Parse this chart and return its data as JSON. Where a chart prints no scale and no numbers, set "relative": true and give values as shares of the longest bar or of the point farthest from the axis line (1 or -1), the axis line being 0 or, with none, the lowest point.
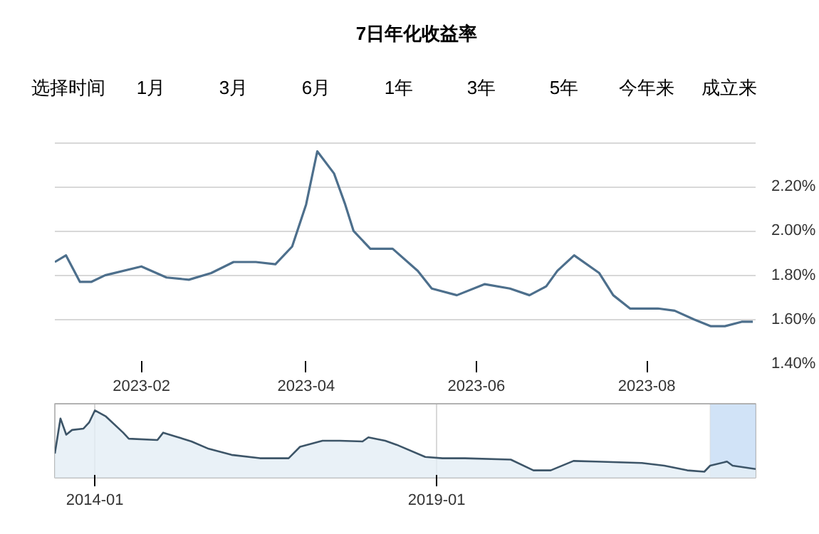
{
  "chart_data": [
    {
      "type": "line",
      "title": "7日年化收益率",
      "annotations": [
        "选择时间",
        "1月",
        "3月",
        "6月",
        "1年",
        "3年",
        "5年",
        "今年来",
        "成立来"
      ],
      "x": [
        "2023-01-01",
        "2023-01-05",
        "2023-01-10",
        "2023-01-14",
        "2023-01-19",
        "2023-02-01",
        "2023-02-10",
        "2023-02-18",
        "2023-02-26",
        "2023-03-06",
        "2023-03-14",
        "2023-03-21",
        "2023-03-27",
        "2023-04-01",
        "2023-04-05",
        "2023-04-11",
        "2023-04-15",
        "2023-04-18",
        "2023-04-24",
        "2023-05-02",
        "2023-05-11",
        "2023-05-16",
        "2023-05-25",
        "2023-06-04",
        "2023-06-13",
        "2023-06-20",
        "2023-06-26",
        "2023-06-30",
        "2023-07-06",
        "2023-07-15",
        "2023-07-20",
        "2023-07-26",
        "2023-08-05",
        "2023-08-11",
        "2023-08-18",
        "2023-08-24",
        "2023-08-29",
        "2023-09-04",
        "2023-09-08"
      ],
      "series": [
        {
          "color": "#4d6f8c",
          "values": [
            1.86,
            1.89,
            1.77,
            1.77,
            1.8,
            1.84,
            1.79,
            1.78,
            1.81,
            1.86,
            1.86,
            1.85,
            1.93,
            2.12,
            2.36,
            2.26,
            2.12,
            2.0,
            1.92,
            1.92,
            1.82,
            1.74,
            1.71,
            1.76,
            1.74,
            1.71,
            1.75,
            1.82,
            1.89,
            1.81,
            1.71,
            1.65,
            1.65,
            1.64,
            1.6,
            1.57,
            1.57,
            1.59,
            1.59
          ]
        }
      ],
      "xlim": [
        "2023-01-01",
        "2023-09-09"
      ],
      "xticks": [
        {
          "value": "2023-02-01",
          "label": "2023-02"
        },
        {
          "value": "2023-04-01",
          "label": "2023-04"
        },
        {
          "value": "2023-06-01",
          "label": "2023-06"
        },
        {
          "value": "2023-08-01",
          "label": "2023-08"
        }
      ],
      "ylim": [
        1.4,
        2.41
      ],
      "yticks": [
        {
          "value": 1.4,
          "label": "1.40%"
        },
        {
          "value": 1.6,
          "label": "1.60%"
        },
        {
          "value": 1.8,
          "label": "1.80%"
        },
        {
          "value": 2.0,
          "label": "2.00%"
        },
        {
          "value": 2.2,
          "label": "2.20%"
        },
        {
          "value": 2.4,
          "label": null
        }
      ],
      "grid": "y"
    },
    {
      "type": "area",
      "relative": true,
      "x": [
        "2013-06",
        "2013-07",
        "2013-08",
        "2013-09",
        "2013-11",
        "2013-12",
        "2014-01",
        "2014-03",
        "2014-06",
        "2014-07",
        "2014-12",
        "2015-01",
        "2015-03",
        "2015-06",
        "2015-09",
        "2016-01",
        "2016-06",
        "2016-11",
        "2017-01",
        "2017-05",
        "2017-08",
        "2017-12",
        "2018-01",
        "2018-04",
        "2018-06",
        "2018-11",
        "2019-02",
        "2019-06",
        "2020-02",
        "2020-06",
        "2020-09",
        "2021-01",
        "2021-05",
        "2022-01",
        "2022-05",
        "2022-09",
        "2022-12",
        "2023-01",
        "2023-04",
        "2023-05",
        "2023-09"
      ],
      "series": [
        {
          "color": "#3d5568",
          "values": [
            0.36,
            0.88,
            0.64,
            0.71,
            0.73,
            0.82,
            1.0,
            0.91,
            0.67,
            0.58,
            0.56,
            0.67,
            0.62,
            0.54,
            0.43,
            0.34,
            0.29,
            0.29,
            0.46,
            0.55,
            0.55,
            0.54,
            0.6,
            0.55,
            0.49,
            0.31,
            0.29,
            0.29,
            0.27,
            0.11,
            0.11,
            0.25,
            0.24,
            0.22,
            0.18,
            0.11,
            0.09,
            0.18,
            0.24,
            0.18,
            0.13
          ]
        }
      ],
      "xlim": [
        "2013-06",
        "2023-09"
      ],
      "xticks": [
        {
          "value": "2014-01",
          "label": "2014-01"
        },
        {
          "value": "2019-01",
          "label": "2019-01"
        }
      ],
      "bands": [
        {
          "axis": "x",
          "from": "2023-01-01",
          "to": "2023-09-09",
          "color": "#c6dcf5"
        }
      ],
      "tick_labels": "x",
      "grid": "x"
    }
  ]
}
